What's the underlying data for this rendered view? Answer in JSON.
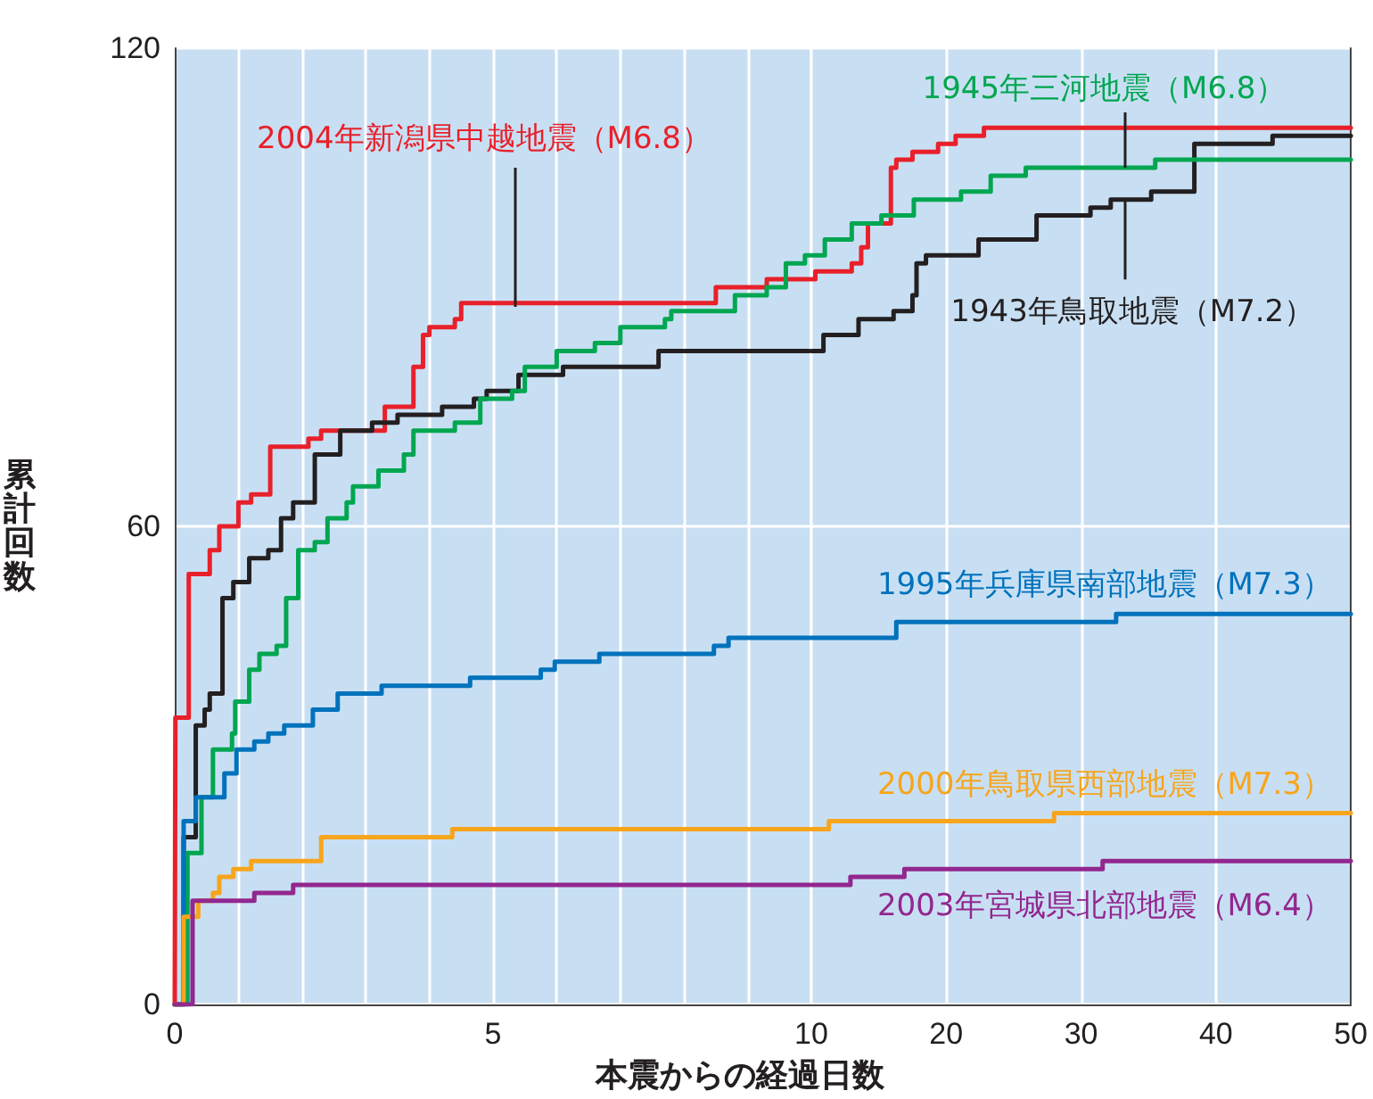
{
  "chart_data": [
    {
      "type": "step",
      "xlabel": "本震からの経過日数",
      "ylabel": "累計回数",
      "xlim": [
        0,
        10
      ],
      "xticks": [
        0,
        {
          "value": 1,
          "label": null
        },
        {
          "value": 2,
          "label": null
        },
        {
          "value": 3,
          "label": null
        },
        {
          "value": 4,
          "label": null
        },
        5,
        {
          "value": 6,
          "label": null
        },
        {
          "value": 7,
          "label": null
        },
        {
          "value": 8,
          "label": null
        },
        {
          "value": 9,
          "label": null
        },
        10
      ],
      "ylim": [
        0,
        120
      ],
      "yticks": [
        0,
        60,
        120
      ],
      "grid": true,
      "series": [
        {
          "name": "2004年新潟県中越地震（M6.8）",
          "color": "#e8202a",
          "x": [
            0,
            0.01,
            0.22,
            0.55,
            0.7,
            1.0,
            1.2,
            1.5,
            2.1,
            2.3,
            3.1,
            3.3,
            3.75,
            3.9,
            4.0,
            4.4,
            4.5,
            8.5,
            9.3,
            10
          ],
          "values": [
            0,
            36,
            54,
            57,
            60,
            63,
            64,
            70,
            71,
            72,
            72,
            75,
            80,
            84,
            85,
            86,
            88,
            90,
            91,
            91
          ]
        },
        {
          "color": "#231f20",
          "x": [
            0,
            0.14,
            0.33,
            0.47,
            0.55,
            0.75,
            0.92,
            1.17,
            1.47,
            1.67,
            1.86,
            2.2,
            2.6,
            3.1,
            3.5,
            4.2,
            4.7,
            4.9,
            5.4,
            6.1,
            7.6,
            10
          ],
          "values": [
            0,
            21,
            35,
            37,
            39,
            51,
            53,
            56,
            57,
            61,
            63,
            69,
            72,
            73,
            74,
            75,
            76,
            77,
            79,
            80,
            82,
            82
          ]
        },
        {
          "color": "#00a650",
          "x": [
            0,
            0.2,
            0.42,
            0.6,
            0.9,
            0.95,
            1.17,
            1.33,
            1.6,
            1.75,
            1.94,
            2.2,
            2.4,
            2.7,
            2.8,
            3.2,
            3.6,
            3.75,
            4.4,
            4.8,
            5.3,
            5.5,
            6.0,
            6.6,
            7.0,
            7.7,
            7.8,
            8.8,
            9.3,
            9.6,
            9.9,
            10
          ],
          "values": [
            0,
            19,
            26,
            32,
            34,
            38,
            42,
            44,
            45,
            51,
            57,
            58,
            61,
            63,
            65,
            67,
            69,
            72,
            73,
            76,
            77,
            80,
            82,
            83,
            85,
            86,
            87,
            89,
            90,
            93,
            94,
            94
          ]
        },
        {
          "color": "#0072bc",
          "x": [
            0,
            0.14,
            0.33,
            0.78,
            0.97,
            1.25,
            1.47,
            1.72,
            2.17,
            2.56,
            3.25,
            4.64,
            5.75,
            5.97,
            6.67,
            8.47,
            8.7,
            10
          ],
          "values": [
            0,
            23,
            26,
            29,
            32,
            33,
            34,
            35,
            37,
            39,
            40,
            41,
            42,
            43,
            44,
            45,
            46,
            46
          ]
        },
        {
          "color": "#f7a51c",
          "x": [
            0,
            0.14,
            0.37,
            0.6,
            0.7,
            0.92,
            1.2,
            2.3,
            4.36,
            10
          ],
          "values": [
            0,
            11,
            13,
            14,
            16,
            17,
            18,
            21,
            22,
            22
          ]
        },
        {
          "color": "#92278f",
          "x": [
            0,
            0.28,
            1.25,
            1.86,
            10
          ],
          "values": [
            0,
            13,
            14,
            15,
            15
          ]
        }
      ]
    },
    {
      "type": "step",
      "xlim": [
        10,
        50
      ],
      "xticks": [
        {
          "value": 10,
          "label": null
        },
        20,
        30,
        40,
        50
      ],
      "ylim": [
        0,
        120
      ],
      "yticks": [
        0,
        60,
        120
      ],
      "grid": true,
      "tick_labels": "x",
      "series": [
        {
          "color": "#e8202a",
          "x": [
            10,
            10.3,
            12,
            13,
            13.7,
            14.2,
            15.9,
            16.3,
            17.5,
            19.4,
            20.7,
            22.8,
            50
          ],
          "values": [
            91,
            92,
            92,
            93,
            95,
            98,
            105,
            106,
            107,
            108,
            109,
            110,
            110
          ]
        },
        {
          "name": "1943年鳥取地震（M7.2）",
          "color": "#231f20",
          "x": [
            10,
            10.9,
            13.5,
            16.1,
            17.5,
            17.8,
            18.5,
            22.4,
            26.7,
            30.7,
            32.2,
            35.2,
            38.4,
            44.2,
            50
          ],
          "values": [
            82,
            84,
            86,
            87,
            89,
            93,
            94,
            96,
            99,
            100,
            101,
            102,
            108,
            109,
            109
          ]
        },
        {
          "name": "1945年三河地震（M6.8）",
          "color": "#00a650",
          "x": [
            10,
            11,
            13,
            15.2,
            17.6,
            21.1,
            23.3,
            25.9,
            35.5,
            50
          ],
          "values": [
            94,
            96,
            98,
            99,
            101,
            102,
            104,
            105,
            106,
            106
          ]
        },
        {
          "name": "1995年兵庫県南部地震（M7.3）",
          "color": "#0072bc",
          "x": [
            10,
            16.3,
            32.6,
            50
          ],
          "values": [
            46,
            48,
            49,
            49
          ]
        },
        {
          "name": "2000年鳥取県西部地震（M7.3）",
          "color": "#f7a51c",
          "x": [
            10,
            11.3,
            28,
            50
          ],
          "values": [
            22,
            23,
            24,
            24
          ]
        },
        {
          "name": "2003年宮城県北部地震（M6.4）",
          "color": "#92278f",
          "x": [
            10,
            12.9,
            16.9,
            31.6,
            50
          ],
          "values": [
            15,
            16,
            17,
            18,
            18
          ]
        }
      ]
    }
  ]
}
